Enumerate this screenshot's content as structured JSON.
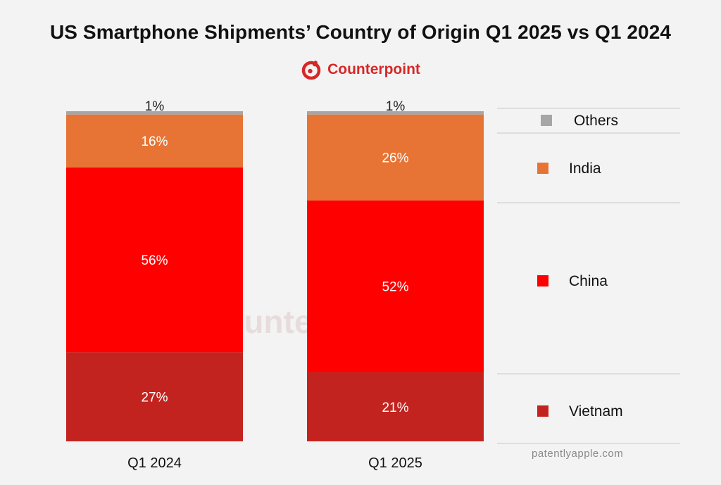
{
  "chart_data": {
    "type": "stacked-bar-100",
    "title": "US Smartphone Shipments’ Country of Origin Q1 2025 vs Q1 2024",
    "categories": [
      "Q1 2024",
      "Q1 2025"
    ],
    "series": [
      {
        "name": "Vietnam",
        "color": "#c3231f",
        "values": [
          27,
          21
        ]
      },
      {
        "name": "China",
        "color": "#fe0000",
        "values": [
          56,
          52
        ]
      },
      {
        "name": "India",
        "color": "#e77435",
        "values": [
          16,
          26
        ]
      },
      {
        "name": "Others",
        "color": "#a6a6a6",
        "values": [
          1,
          1
        ]
      }
    ],
    "value_suffix": "%",
    "legend_order": [
      "Others",
      "India",
      "China",
      "Vietnam"
    ],
    "legend_position": "right"
  },
  "brand": {
    "name": "Counterpoint",
    "color": "#d62828"
  },
  "watermark": {
    "text": "Counterpoint"
  },
  "credit": "patentlyapple.com"
}
